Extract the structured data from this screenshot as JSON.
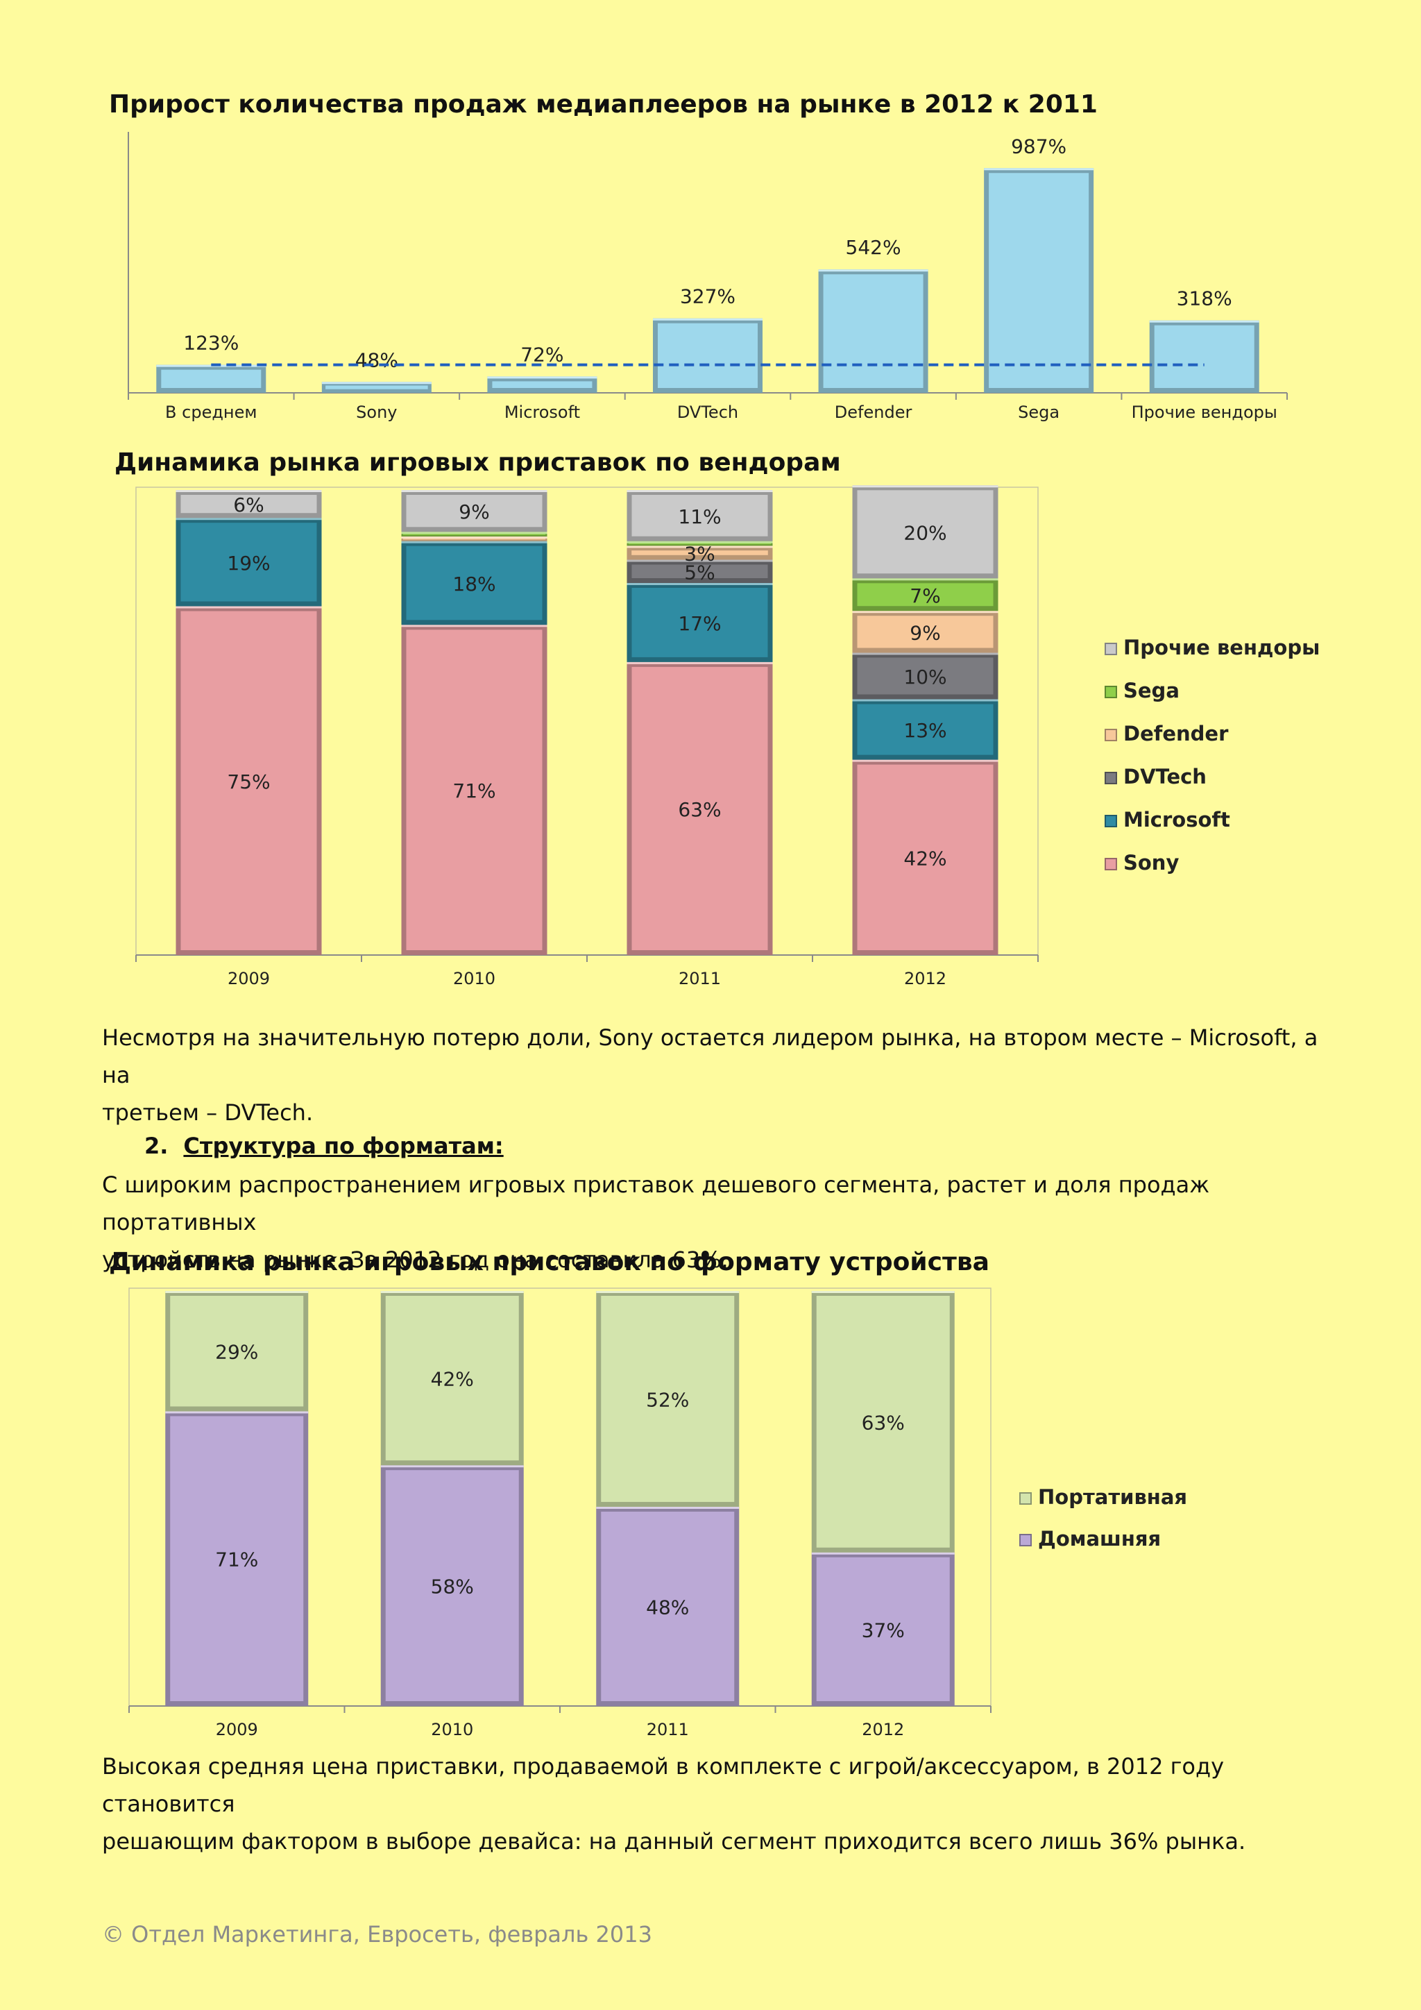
{
  "chart_data": [
    {
      "type": "bar",
      "title": "Прирост количества продаж медиаплееров на рынке в 2012 к 2011",
      "categories": [
        "В среднем",
        "Sony",
        "Microsoft",
        "DVTech",
        "Defender",
        "Sega",
        "Прочие вендоры"
      ],
      "values": [
        123,
        48,
        72,
        327,
        542,
        987,
        318
      ],
      "value_labels": [
        "123%",
        "48%",
        "72%",
        "327%",
        "542%",
        "987%",
        "318%"
      ],
      "reference_line": {
        "value": 123,
        "style": "dashed",
        "color": "#1f5fbf"
      },
      "xlabel": "",
      "ylabel": "",
      "ylim": [
        0,
        1000
      ],
      "colors": {
        "bar": "#9ed8ec",
        "bar_edge": "#6aa8c0"
      }
    },
    {
      "type": "bar",
      "stacked": true,
      "title": "Динамика рынка игровых приставок по вендорам",
      "categories": [
        "2009",
        "2010",
        "2011",
        "2012"
      ],
      "series": [
        {
          "name": "Sony",
          "values": [
            75,
            71,
            63,
            42
          ],
          "labels": [
            "75%",
            "71%",
            "63%",
            "42%"
          ],
          "color": "#e89ea2"
        },
        {
          "name": "Microsoft",
          "values": [
            19,
            18,
            17,
            13
          ],
          "labels": [
            "19%",
            "18%",
            "17%",
            "13%"
          ],
          "color": "#2f8ca3"
        },
        {
          "name": "DVTech",
          "values": [
            0,
            0,
            5,
            10
          ],
          "labels": [
            "",
            "",
            "5%",
            "10%"
          ],
          "color": "#7b7b80"
        },
        {
          "name": "Defender",
          "values": [
            0,
            1,
            3,
            9
          ],
          "labels": [
            "",
            "",
            "3%",
            "9%"
          ],
          "color": "#f7c89a"
        },
        {
          "name": "Sega",
          "values": [
            0,
            1,
            1,
            7
          ],
          "labels": [
            "",
            "",
            "",
            "7%"
          ],
          "color": "#8fcf4a"
        },
        {
          "name": "Прочие вендоры",
          "values": [
            6,
            9,
            11,
            20
          ],
          "labels": [
            "6%",
            "9%",
            "11%",
            "20%"
          ],
          "color": "#cacaca"
        }
      ],
      "legend": [
        "Прочие вендоры",
        "Sega",
        "Defender",
        "DVTech",
        "Microsoft",
        "Sony"
      ],
      "legend_position": "right",
      "ylim": [
        0,
        100
      ]
    },
    {
      "type": "bar",
      "stacked": true,
      "title": "Динамика рынка игровых приставок по формату устройства",
      "categories": [
        "2009",
        "2010",
        "2011",
        "2012"
      ],
      "series": [
        {
          "name": "Домашняя",
          "values": [
            71,
            58,
            48,
            37
          ],
          "labels": [
            "71%",
            "58%",
            "48%",
            "37%"
          ],
          "color": "#bba9d6"
        },
        {
          "name": "Портативная",
          "values": [
            29,
            42,
            52,
            63
          ],
          "labels": [
            "29%",
            "42%",
            "52%",
            "63%"
          ],
          "color": "#d3e4ad"
        }
      ],
      "legend": [
        "Портативная",
        "Домашняя"
      ],
      "legend_position": "right",
      "ylim": [
        0,
        100
      ]
    }
  ],
  "text": {
    "para1_line1": "Несмотря на значительную потерю доли, Sony остается лидером рынка, на втором месте – Microsoft, а на",
    "para1_line2": "третьем – DVTech.",
    "section_number": "2.",
    "section_title": "Структура по форматам:",
    "para2_line1": "С широким распространением игровых приставок дешевого сегмента, растет и доля продаж портативных",
    "para2_line2": "устройств на рынке. За 2012 год она составила 63%.",
    "para3_line1": "Высокая средняя цена приставки, продаваемой в комплекте с игрой/аксессуаром, в 2012 году становится",
    "para3_line2": "решающим фактором в выборе девайса: на данный сегмент приходится всего лишь 36% рынка.",
    "footer": "© Отдел Маркетинга, Евросеть, февраль 2013"
  }
}
